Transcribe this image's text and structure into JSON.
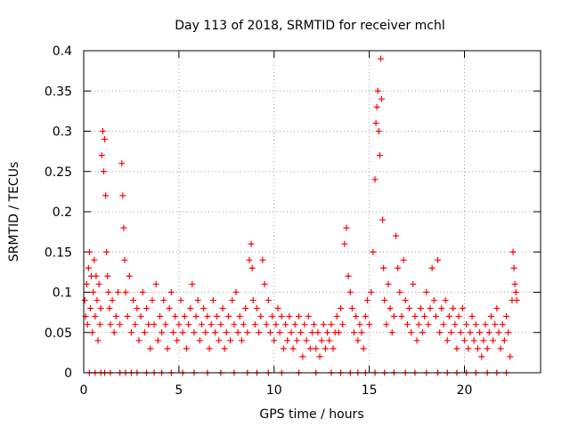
{
  "chart_data": {
    "type": "scatter",
    "title": "Day 113 of 2018, SRMTID for receiver mchl",
    "xlabel": "GPS time / hours",
    "ylabel": "SRMTID / TECUs",
    "xlim": [
      0,
      24
    ],
    "ylim": [
      0,
      0.4
    ],
    "x_ticks": [
      0,
      5,
      10,
      15,
      20
    ],
    "x_tick_labels": [
      "0",
      "5",
      "10",
      "15",
      "20"
    ],
    "y_ticks": [
      0,
      0.05,
      0.1,
      0.15,
      0.2,
      0.25,
      0.3,
      0.35,
      0.4
    ],
    "y_tick_labels": [
      "0",
      "0.05",
      "0.1",
      "0.15",
      "0.2",
      "0.25",
      "0.3",
      "0.35",
      "0.4"
    ],
    "grid": true,
    "marker": "plus",
    "color": "#ff0000",
    "series": [
      {
        "name": "SRMTID",
        "points": [
          [
            0.05,
            0.09
          ],
          [
            0.1,
            0.07
          ],
          [
            0.15,
            0.11
          ],
          [
            0.2,
            0.06
          ],
          [
            0.25,
            0.13
          ],
          [
            0.3,
            0.15
          ],
          [
            0.35,
            0.08
          ],
          [
            0.4,
            0.12
          ],
          [
            0.45,
            0.05
          ],
          [
            0.5,
            0.1
          ],
          [
            0.55,
            0.14
          ],
          [
            0.6,
            0.07
          ],
          [
            0.65,
            0.12
          ],
          [
            0.7,
            0.09
          ],
          [
            0.75,
            0.04
          ],
          [
            0.8,
            0.11
          ],
          [
            0.85,
            0.06
          ],
          [
            0.9,
            0.08
          ],
          [
            0.95,
            0.27
          ],
          [
            1.0,
            0.3
          ],
          [
            1.05,
            0.25
          ],
          [
            1.1,
            0.29
          ],
          [
            1.15,
            0.22
          ],
          [
            1.2,
            0.15
          ],
          [
            1.25,
            0.12
          ],
          [
            1.3,
            0.1
          ],
          [
            1.35,
            0.08
          ],
          [
            1.4,
            0.06
          ],
          [
            1.5,
            0.09
          ],
          [
            1.6,
            0.05
          ],
          [
            1.7,
            0.07
          ],
          [
            1.8,
            0.1
          ],
          [
            1.9,
            0.06
          ],
          [
            2.0,
            0.26
          ],
          [
            2.05,
            0.22
          ],
          [
            2.1,
            0.18
          ],
          [
            2.15,
            0.14
          ],
          [
            2.2,
            0.1
          ],
          [
            2.3,
            0.07
          ],
          [
            2.4,
            0.12
          ],
          [
            2.5,
            0.05
          ],
          [
            2.6,
            0.09
          ],
          [
            2.7,
            0.06
          ],
          [
            2.8,
            0.08
          ],
          [
            2.9,
            0.04
          ],
          [
            3.0,
            0.07
          ],
          [
            3.1,
            0.1
          ],
          [
            3.2,
            0.05
          ],
          [
            3.3,
            0.08
          ],
          [
            3.4,
            0.06
          ],
          [
            3.5,
            0.03
          ],
          [
            3.6,
            0.09
          ],
          [
            3.7,
            0.06
          ],
          [
            3.8,
            0.11
          ],
          [
            3.9,
            0.04
          ],
          [
            4.0,
            0.07
          ],
          [
            4.1,
            0.05
          ],
          [
            4.2,
            0.09
          ],
          [
            4.3,
            0.06
          ],
          [
            4.4,
            0.03
          ],
          [
            4.5,
            0.08
          ],
          [
            4.6,
            0.1
          ],
          [
            4.7,
            0.05
          ],
          [
            4.8,
            0.07
          ],
          [
            4.9,
            0.04
          ],
          [
            5.0,
            0.06
          ],
          [
            5.1,
            0.09
          ],
          [
            5.2,
            0.05
          ],
          [
            5.3,
            0.07
          ],
          [
            5.4,
            0.03
          ],
          [
            5.5,
            0.06
          ],
          [
            5.6,
            0.08
          ],
          [
            5.7,
            0.11
          ],
          [
            5.8,
            0.05
          ],
          [
            5.9,
            0.07
          ],
          [
            6.0,
            0.09
          ],
          [
            6.1,
            0.04
          ],
          [
            6.2,
            0.06
          ],
          [
            6.3,
            0.08
          ],
          [
            6.4,
            0.05
          ],
          [
            6.5,
            0.07
          ],
          [
            6.6,
            0.03
          ],
          [
            6.7,
            0.06
          ],
          [
            6.8,
            0.09
          ],
          [
            6.9,
            0.05
          ],
          [
            7.0,
            0.07
          ],
          [
            7.1,
            0.04
          ],
          [
            7.2,
            0.06
          ],
          [
            7.3,
            0.08
          ],
          [
            7.4,
            0.03
          ],
          [
            7.5,
            0.05
          ],
          [
            7.6,
            0.07
          ],
          [
            7.7,
            0.04
          ],
          [
            7.8,
            0.09
          ],
          [
            7.9,
            0.06
          ],
          [
            8.0,
            0.1
          ],
          [
            8.1,
            0.05
          ],
          [
            8.2,
            0.07
          ],
          [
            8.3,
            0.04
          ],
          [
            8.4,
            0.06
          ],
          [
            8.5,
            0.08
          ],
          [
            8.6,
            0.05
          ],
          [
            8.7,
            0.14
          ],
          [
            8.8,
            0.16
          ],
          [
            8.85,
            0.13
          ],
          [
            8.9,
            0.09
          ],
          [
            9.0,
            0.06
          ],
          [
            9.1,
            0.08
          ],
          [
            9.2,
            0.05
          ],
          [
            9.3,
            0.07
          ],
          [
            9.4,
            0.14
          ],
          [
            9.5,
            0.11
          ],
          [
            9.6,
            0.06
          ],
          [
            9.7,
            0.09
          ],
          [
            9.8,
            0.05
          ],
          [
            9.9,
            0.07
          ],
          [
            10.0,
            0.04
          ],
          [
            10.1,
            0.06
          ],
          [
            10.2,
            0.08
          ],
          [
            10.3,
            0.05
          ],
          [
            10.4,
            0.07
          ],
          [
            10.5,
            0.03
          ],
          [
            10.6,
            0.06
          ],
          [
            10.7,
            0.04
          ],
          [
            10.8,
            0.07
          ],
          [
            10.9,
            0.05
          ],
          [
            11.0,
            0.03
          ],
          [
            11.1,
            0.06
          ],
          [
            11.2,
            0.04
          ],
          [
            11.3,
            0.07
          ],
          [
            11.4,
            0.05
          ],
          [
            11.5,
            0.02
          ],
          [
            11.6,
            0.06
          ],
          [
            11.7,
            0.04
          ],
          [
            11.8,
            0.07
          ],
          [
            11.9,
            0.03
          ],
          [
            12.0,
            0.05
          ],
          [
            12.1,
            0.06
          ],
          [
            12.2,
            0.03
          ],
          [
            12.3,
            0.05
          ],
          [
            12.4,
            0.02
          ],
          [
            12.5,
            0.04
          ],
          [
            12.6,
            0.06
          ],
          [
            12.7,
            0.03
          ],
          [
            12.8,
            0.05
          ],
          [
            12.9,
            0.04
          ],
          [
            13.0,
            0.06
          ],
          [
            13.1,
            0.03
          ],
          [
            13.2,
            0.05
          ],
          [
            13.3,
            0.07
          ],
          [
            13.4,
            0.05
          ],
          [
            13.5,
            0.08
          ],
          [
            13.6,
            0.06
          ],
          [
            13.7,
            0.16
          ],
          [
            13.8,
            0.18
          ],
          [
            13.9,
            0.12
          ],
          [
            14.0,
            0.1
          ],
          [
            14.1,
            0.08
          ],
          [
            14.2,
            0.05
          ],
          [
            14.3,
            0.07
          ],
          [
            14.4,
            0.04
          ],
          [
            14.5,
            0.06
          ],
          [
            14.6,
            0.05
          ],
          [
            14.7,
            0.03
          ],
          [
            14.8,
            0.07
          ],
          [
            14.9,
            0.09
          ],
          [
            15.0,
            0.06
          ],
          [
            15.1,
            0.1
          ],
          [
            15.2,
            0.15
          ],
          [
            15.3,
            0.24
          ],
          [
            15.35,
            0.31
          ],
          [
            15.4,
            0.33
          ],
          [
            15.45,
            0.35
          ],
          [
            15.5,
            0.3
          ],
          [
            15.55,
            0.27
          ],
          [
            15.6,
            0.39
          ],
          [
            15.65,
            0.34
          ],
          [
            15.7,
            0.19
          ],
          [
            15.75,
            0.13
          ],
          [
            15.8,
            0.09
          ],
          [
            15.9,
            0.06
          ],
          [
            16.0,
            0.11
          ],
          [
            16.1,
            0.08
          ],
          [
            16.2,
            0.05
          ],
          [
            16.3,
            0.07
          ],
          [
            16.4,
            0.17
          ],
          [
            16.5,
            0.13
          ],
          [
            16.6,
            0.1
          ],
          [
            16.7,
            0.07
          ],
          [
            16.8,
            0.14
          ],
          [
            16.9,
            0.09
          ],
          [
            17.0,
            0.06
          ],
          [
            17.1,
            0.08
          ],
          [
            17.2,
            0.05
          ],
          [
            17.3,
            0.11
          ],
          [
            17.4,
            0.07
          ],
          [
            17.5,
            0.04
          ],
          [
            17.6,
            0.06
          ],
          [
            17.7,
            0.08
          ],
          [
            17.8,
            0.05
          ],
          [
            17.9,
            0.07
          ],
          [
            18.0,
            0.1
          ],
          [
            18.1,
            0.06
          ],
          [
            18.2,
            0.08
          ],
          [
            18.3,
            0.13
          ],
          [
            18.4,
            0.09
          ],
          [
            18.5,
            0.07
          ],
          [
            18.6,
            0.14
          ],
          [
            18.7,
            0.05
          ],
          [
            18.8,
            0.08
          ],
          [
            18.9,
            0.06
          ],
          [
            19.0,
            0.09
          ],
          [
            19.1,
            0.04
          ],
          [
            19.2,
            0.07
          ],
          [
            19.3,
            0.05
          ],
          [
            19.4,
            0.08
          ],
          [
            19.5,
            0.06
          ],
          [
            19.6,
            0.03
          ],
          [
            19.7,
            0.07
          ],
          [
            19.8,
            0.05
          ],
          [
            19.9,
            0.08
          ],
          [
            20.0,
            0.04
          ],
          [
            20.1,
            0.06
          ],
          [
            20.2,
            0.03
          ],
          [
            20.3,
            0.05
          ],
          [
            20.4,
            0.07
          ],
          [
            20.5,
            0.04
          ],
          [
            20.6,
            0.06
          ],
          [
            20.7,
            0.03
          ],
          [
            20.8,
            0.05
          ],
          [
            20.9,
            0.02
          ],
          [
            21.0,
            0.04
          ],
          [
            21.1,
            0.06
          ],
          [
            21.2,
            0.03
          ],
          [
            21.3,
            0.05
          ],
          [
            21.4,
            0.07
          ],
          [
            21.5,
            0.04
          ],
          [
            21.6,
            0.06
          ],
          [
            21.7,
            0.08
          ],
          [
            21.8,
            0.05
          ],
          [
            21.9,
            0.03
          ],
          [
            22.0,
            0.06
          ],
          [
            22.1,
            0.04
          ],
          [
            22.2,
            0.07
          ],
          [
            22.3,
            0.05
          ],
          [
            22.4,
            0.02
          ],
          [
            22.5,
            0.09
          ],
          [
            22.55,
            0.15
          ],
          [
            22.6,
            0.13
          ],
          [
            22.65,
            0.11
          ],
          [
            22.7,
            0.1
          ],
          [
            22.75,
            0.09
          ],
          [
            0.3,
            0.0
          ],
          [
            0.6,
            0.0
          ],
          [
            0.9,
            0.0
          ],
          [
            1.1,
            0.0
          ],
          [
            1.4,
            0.0
          ],
          [
            1.9,
            0.0
          ],
          [
            2.2,
            0.0
          ],
          [
            2.5,
            0.0
          ],
          [
            2.8,
            0.0
          ],
          [
            3.3,
            0.0
          ],
          [
            3.7,
            0.0
          ],
          [
            4.1,
            0.0
          ],
          [
            4.6,
            0.0
          ],
          [
            5.2,
            0.0
          ],
          [
            5.8,
            0.0
          ],
          [
            6.5,
            0.0
          ],
          [
            7.2,
            0.0
          ],
          [
            7.9,
            0.0
          ],
          [
            8.6,
            0.0
          ],
          [
            9.1,
            0.0
          ],
          [
            9.7,
            0.0
          ],
          [
            10.4,
            0.0
          ],
          [
            11.3,
            0.0
          ],
          [
            12.2,
            0.0
          ],
          [
            13.0,
            0.0
          ],
          [
            13.5,
            0.0
          ],
          [
            14.0,
            0.0
          ],
          [
            14.4,
            0.0
          ],
          [
            14.8,
            0.0
          ],
          [
            15.3,
            0.0
          ],
          [
            15.8,
            0.0
          ],
          [
            16.3,
            0.0
          ],
          [
            16.9,
            0.0
          ],
          [
            17.4,
            0.0
          ],
          [
            18.0,
            0.0
          ],
          [
            18.6,
            0.0
          ],
          [
            19.1,
            0.0
          ],
          [
            19.6,
            0.0
          ],
          [
            20.1,
            0.0
          ],
          [
            20.6,
            0.0
          ],
          [
            21.2,
            0.0
          ],
          [
            21.7,
            0.0
          ],
          [
            22.2,
            0.0
          ]
        ]
      }
    ]
  }
}
